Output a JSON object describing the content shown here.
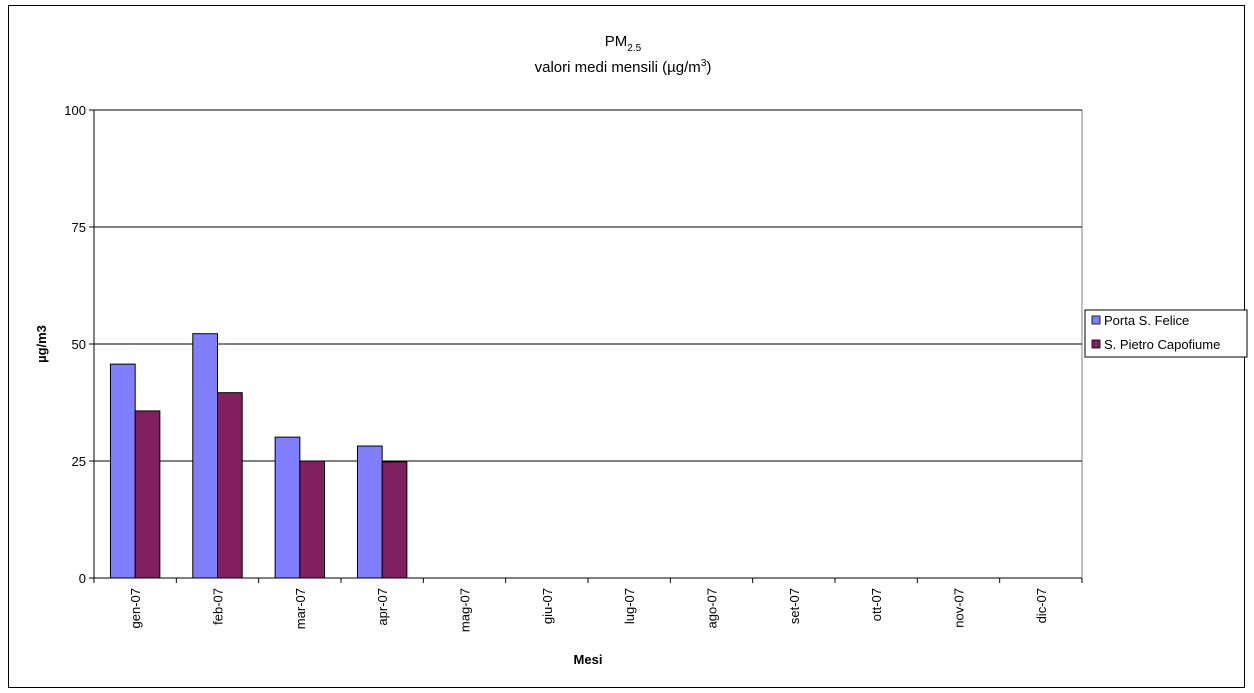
{
  "chart_data": {
    "type": "bar",
    "title": {
      "main": "PM",
      "main_sub": "2.5",
      "line2_prefix": "valori medi mensili (µg/m",
      "line2_sup": "3",
      "line2_suffix": ")"
    },
    "xlabel": "Mesi",
    "ylabel": "µg/m3",
    "ylim": [
      0,
      100
    ],
    "yticks": [
      0,
      25,
      50,
      75,
      100
    ],
    "grid": true,
    "legend_position": "right",
    "categories": [
      "gen-07",
      "feb-07",
      "mar-07",
      "apr-07",
      "mag-07",
      "giu-07",
      "lug-07",
      "ago-07",
      "set-07",
      "ott-07",
      "nov-07",
      "dic-07"
    ],
    "series": [
      {
        "name": "Porta S. Felice",
        "color": "#8080FF",
        "values": [
          45.7,
          52.2,
          30.1,
          28.2,
          null,
          null,
          null,
          null,
          null,
          null,
          null,
          null
        ]
      },
      {
        "name": "S. Pietro Capofiume",
        "color": "#802060",
        "values": [
          35.7,
          39.6,
          25.0,
          24.8,
          null,
          null,
          null,
          null,
          null,
          null,
          null,
          null
        ]
      }
    ]
  }
}
